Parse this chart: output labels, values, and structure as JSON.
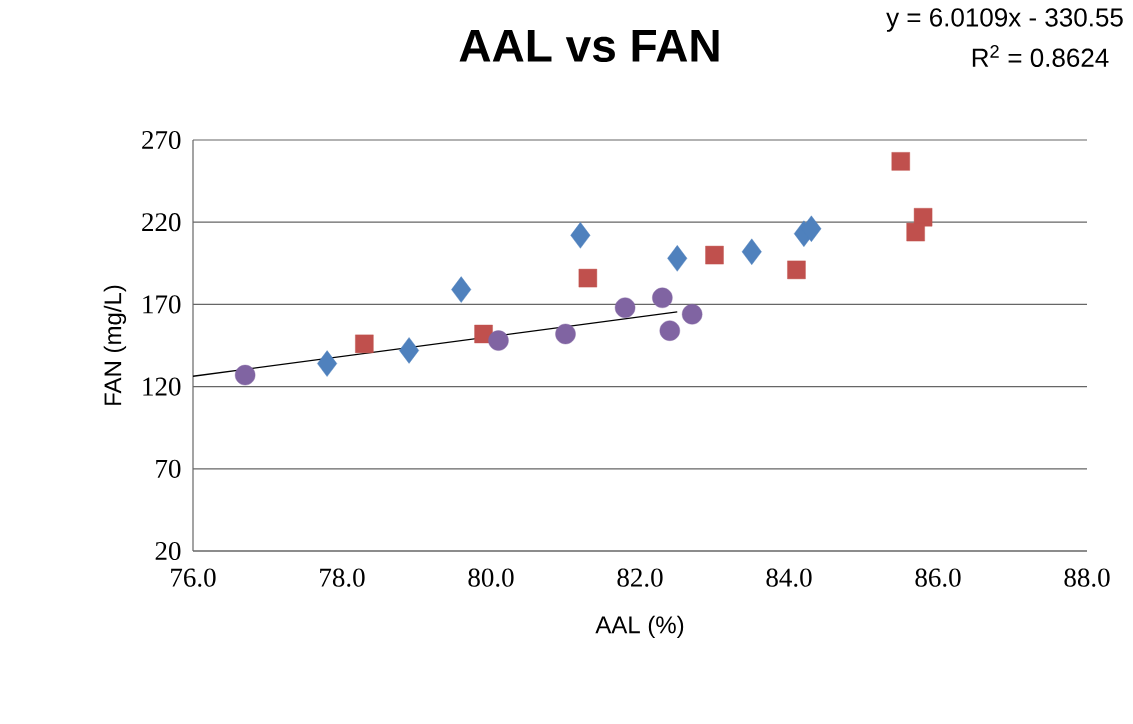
{
  "chart_data": {
    "type": "scatter",
    "title": "AAL vs FAN",
    "xlabel": "AAL (%)",
    "ylabel": "FAN (mg/L)",
    "annotations": [
      "y = 6.0109x - 330.55",
      "R$^{2}$ = 0.8624"
    ],
    "xlim": [
      76,
      88
    ],
    "ylim": [
      20,
      270
    ],
    "xticks": [
      {
        "value": 76,
        "label": "76.0"
      },
      {
        "value": 78,
        "label": "78.0"
      },
      {
        "value": 80,
        "label": "80.0"
      },
      {
        "value": 82,
        "label": "82.0"
      },
      {
        "value": 84,
        "label": "84.0"
      },
      {
        "value": 86,
        "label": "86.0"
      },
      {
        "value": 88,
        "label": "88.0"
      }
    ],
    "yticks": [
      20,
      70,
      120,
      170,
      220,
      270
    ],
    "grid": "y",
    "series": [
      {
        "color": "#4f81bd",
        "marker": "diamond",
        "x": [
          77.8,
          78.9,
          79.6,
          81.2,
          82.5,
          83.5,
          84.2,
          84.3
        ],
        "values": [
          134,
          142,
          179,
          212,
          198,
          202,
          213,
          216
        ]
      },
      {
        "color": "#c0504d",
        "marker": "square",
        "x": [
          78.3,
          79.9,
          81.3,
          83.0,
          84.1,
          85.5,
          85.8,
          85.7
        ],
        "values": [
          146,
          152,
          186,
          200,
          191,
          257,
          223,
          214
        ]
      },
      {
        "color": "#8064a2",
        "marker": "circle",
        "x": [
          76.7,
          80.1,
          81.0,
          81.8,
          82.3,
          82.4,
          82.7
        ],
        "values": [
          127,
          148,
          152,
          168,
          174,
          154,
          164
        ]
      },
      {
        "type": "line",
        "color": "#000000",
        "marker": "none",
        "x": [
          76.0,
          82.5
        ],
        "values": [
          126.3,
          165.4
        ]
      }
    ]
  }
}
